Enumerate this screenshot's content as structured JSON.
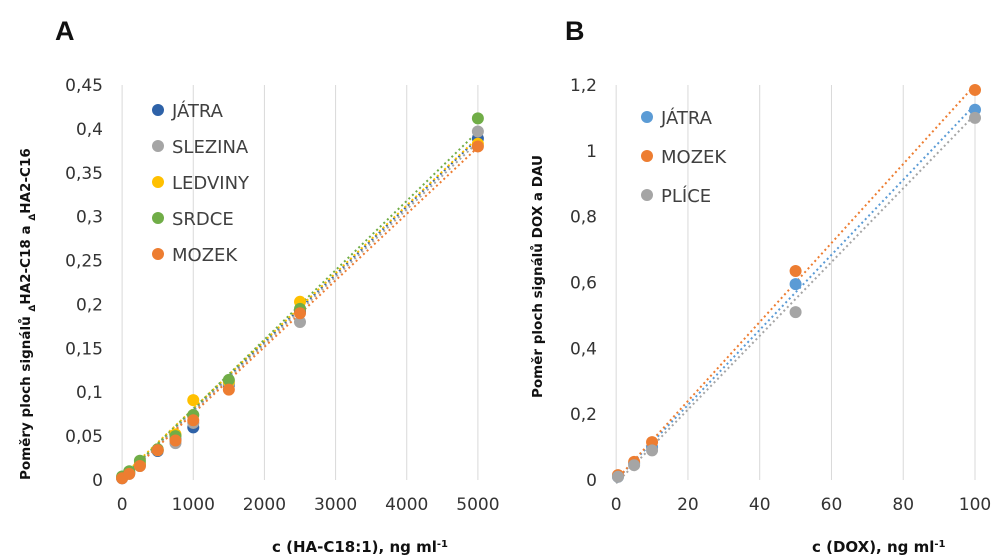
{
  "chart_data": [
    {
      "type": "scatter",
      "panel_label": "A",
      "ylabel_parts": {
        "a": "Poměry ploch signálů ",
        "s1": "Δ",
        "b": "HA2-C18 a ",
        "s2": "Δ",
        "c": "HA2-C16"
      },
      "xlabel": "c (HA-C18:1), ng ml",
      "xlabel_sup": "-1",
      "xlim": [
        -100,
        5100
      ],
      "ylim": [
        0,
        0.45
      ],
      "xticks": [
        0,
        1000,
        2000,
        3000,
        4000,
        5000
      ],
      "xtick_labels": [
        "0",
        "1000",
        "2000",
        "3000",
        "4000",
        "5000"
      ],
      "yticks": [
        0,
        0.05,
        0.1,
        0.15,
        0.2,
        0.25,
        0.3,
        0.35,
        0.4,
        0.45
      ],
      "ytick_labels": [
        "0",
        "0,05",
        "0,1",
        "0,15",
        "0,2",
        "0,25",
        "0,3",
        "0,35",
        "0,4",
        "0,45"
      ],
      "grid": "vertical",
      "legend_position": "top-left",
      "series": [
        {
          "name": "JÁTRA",
          "color": "#2e62a8",
          "x": [
            0,
            100,
            250,
            500,
            750,
            1000,
            1500,
            2500,
            5000
          ],
          "y": [
            0.002,
            0.008,
            0.018,
            0.033,
            0.046,
            0.06,
            0.108,
            0.192,
            0.389
          ],
          "trend": [
            [
              0,
              0.002
            ],
            [
              5000,
              0.389
            ]
          ]
        },
        {
          "name": "SLEZINA",
          "color": "#a5a5a5",
          "x": [
            0,
            100,
            250,
            500,
            750,
            1000,
            1500,
            2500,
            5000
          ],
          "y": [
            0.002,
            0.007,
            0.016,
            0.034,
            0.042,
            0.065,
            0.11,
            0.18,
            0.397
          ],
          "trend": [
            [
              0,
              0.001
            ],
            [
              5000,
              0.385
            ]
          ]
        },
        {
          "name": "LEDVINY",
          "color": "#ffc000",
          "x": [
            0,
            100,
            250,
            500,
            750,
            1000,
            1500,
            2500,
            5000
          ],
          "y": [
            0.003,
            0.009,
            0.019,
            0.034,
            0.052,
            0.091,
            0.112,
            0.203,
            0.383
          ],
          "trend": [
            [
              0,
              0.004
            ],
            [
              5000,
              0.39
            ]
          ]
        },
        {
          "name": "SRDCE",
          "color": "#70ad47",
          "x": [
            0,
            100,
            250,
            500,
            750,
            1000,
            1500,
            2500,
            5000
          ],
          "y": [
            0.004,
            0.01,
            0.022,
            0.035,
            0.05,
            0.074,
            0.114,
            0.195,
            0.412
          ],
          "trend": [
            [
              0,
              0.002
            ],
            [
              5000,
              0.397
            ]
          ]
        },
        {
          "name": "MOZEK",
          "color": "#ed7d31",
          "x": [
            0,
            100,
            250,
            500,
            750,
            1000,
            1500,
            2500,
            5000
          ],
          "y": [
            0.002,
            0.007,
            0.016,
            0.034,
            0.045,
            0.068,
            0.103,
            0.19,
            0.38
          ],
          "trend": [
            [
              0,
              0
            ],
            [
              5000,
              0.379
            ]
          ]
        }
      ]
    },
    {
      "type": "scatter",
      "panel_label": "B",
      "ylabel": "Poměr ploch signálů DOX a DAU",
      "xlabel": "c (DOX), ng ml",
      "xlabel_sup": "-1",
      "xlim": [
        -2,
        100
      ],
      "ylim": [
        0,
        1.2
      ],
      "xticks": [
        0,
        20,
        40,
        60,
        80,
        100
      ],
      "xtick_labels": [
        "0",
        "20",
        "40",
        "60",
        "80",
        "100"
      ],
      "yticks": [
        0,
        0.2,
        0.4,
        0.6,
        0.8,
        1.0,
        1.2
      ],
      "ytick_labels": [
        "0",
        "0,2",
        "0,4",
        "0,6",
        "0,8",
        "1",
        "1,2"
      ],
      "grid": "vertical",
      "legend_position": "top-left",
      "series": [
        {
          "name": "JÁTRA",
          "color": "#5b9bd5",
          "x": [
            0.5,
            5,
            10,
            50,
            100
          ],
          "y": [
            0.01,
            0.05,
            0.1,
            0.595,
            1.125
          ],
          "trend": [
            [
              0,
              0
            ],
            [
              100,
              1.14
            ]
          ]
        },
        {
          "name": "MOZEK",
          "color": "#ed7d31",
          "x": [
            0.5,
            5,
            10,
            50,
            100
          ],
          "y": [
            0.015,
            0.055,
            0.115,
            0.635,
            1.185
          ],
          "trend": [
            [
              0,
              0
            ],
            [
              100,
              1.2
            ]
          ]
        },
        {
          "name": "PLÍCE",
          "color": "#a5a5a5",
          "x": [
            0.5,
            5,
            10,
            50,
            100
          ],
          "y": [
            0.01,
            0.045,
            0.09,
            0.51,
            1.1
          ],
          "trend": [
            [
              0,
              -0.01
            ],
            [
              100,
              1.11
            ]
          ]
        }
      ]
    }
  ]
}
